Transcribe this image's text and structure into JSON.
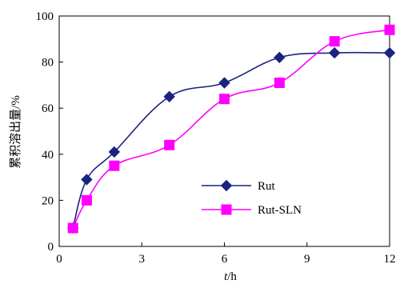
{
  "chart_data": {
    "type": "line",
    "title": "",
    "xlabel_var": "t",
    "xlabel_unit": "/h",
    "ylabel": "累积溶出量/%",
    "xlim": [
      0,
      12
    ],
    "ylim": [
      0,
      100
    ],
    "xticks": [
      0,
      3,
      6,
      9,
      12
    ],
    "yticks": [
      0,
      20,
      40,
      60,
      80,
      100
    ],
    "grid": false,
    "legend_position": "inside-lower-right",
    "series": [
      {
        "name": "Rut",
        "color": "#1a237e",
        "marker": "diamond",
        "x": [
          0.5,
          1,
          2,
          4,
          6,
          8,
          10,
          12
        ],
        "y": [
          8,
          29,
          41,
          65,
          71,
          82,
          84,
          84
        ]
      },
      {
        "name": "Rut-SLN",
        "color": "#ff00ff",
        "marker": "square",
        "x": [
          0.5,
          1,
          2,
          4,
          6,
          8,
          10,
          12
        ],
        "y": [
          8,
          20,
          35,
          44,
          64,
          71,
          89,
          94
        ]
      }
    ]
  }
}
